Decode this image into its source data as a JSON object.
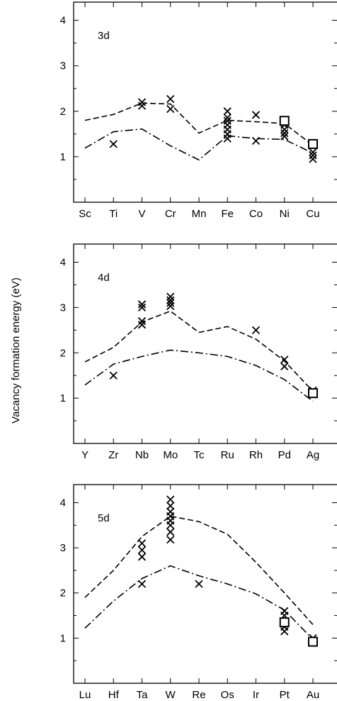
{
  "ylabel": "Vacancy formation energy (eV)",
  "colors": {
    "ink": "#000000",
    "background": "#ffffff"
  },
  "chart_data": [
    {
      "type": "scatter",
      "panel_label": "3d",
      "categories": [
        "Sc",
        "Ti",
        "V",
        "Cr",
        "Mn",
        "Fe",
        "Co",
        "Ni",
        "Cu"
      ],
      "ylim": [
        0,
        4.4
      ],
      "yticks": [
        1,
        2,
        3,
        4
      ],
      "series": [
        {
          "style": "dashed",
          "values": [
            1.8,
            1.93,
            2.18,
            2.16,
            1.52,
            1.8,
            1.77,
            1.73,
            1.25
          ]
        },
        {
          "style": "dash-dot",
          "values": [
            1.19,
            1.55,
            1.61,
            1.24,
            0.93,
            1.46,
            1.4,
            1.38,
            1.08
          ]
        },
        {
          "marker": "cross",
          "points": [
            [
              "Ti",
              1.28
            ],
            [
              "V",
              2.2
            ],
            [
              "V",
              2.12
            ],
            [
              "Cr",
              2.27
            ],
            [
              "Cr",
              2.05
            ],
            [
              "Fe",
              2.0
            ],
            [
              "Fe",
              1.86
            ],
            [
              "Fe",
              1.79
            ],
            [
              "Fe",
              1.7
            ],
            [
              "Fe",
              1.6
            ],
            [
              "Fe",
              1.5
            ],
            [
              "Fe",
              1.4
            ],
            [
              "Co",
              1.92
            ],
            [
              "Co",
              1.35
            ],
            [
              "Ni",
              1.7
            ],
            [
              "Ni",
              1.6
            ],
            [
              "Ni",
              1.52
            ],
            [
              "Ni",
              1.45
            ],
            [
              "Cu",
              1.1
            ],
            [
              "Cu",
              1.03
            ],
            [
              "Cu",
              0.95
            ]
          ]
        },
        {
          "marker": "open-square",
          "points": [
            [
              "Ni",
              1.79
            ],
            [
              "Cu",
              1.28
            ]
          ]
        }
      ]
    },
    {
      "type": "scatter",
      "panel_label": "4d",
      "categories": [
        "Y",
        "Zr",
        "Nb",
        "Mo",
        "Tc",
        "Ru",
        "Rh",
        "Pd",
        "Ag"
      ],
      "ylim": [
        0,
        4.4
      ],
      "yticks": [
        1,
        2,
        3,
        4
      ],
      "series": [
        {
          "style": "dashed",
          "values": [
            1.8,
            2.12,
            2.68,
            2.92,
            2.45,
            2.58,
            2.3,
            1.82,
            1.15
          ]
        },
        {
          "style": "dash-dot",
          "values": [
            1.29,
            1.75,
            1.92,
            2.06,
            2.0,
            1.92,
            1.72,
            1.41,
            0.93
          ]
        },
        {
          "marker": "cross",
          "points": [
            [
              "Zr",
              1.5
            ],
            [
              "Nb",
              3.07
            ],
            [
              "Nb",
              3.0
            ],
            [
              "Nb",
              2.7
            ],
            [
              "Nb",
              2.62
            ],
            [
              "Mo",
              3.24
            ],
            [
              "Mo",
              3.16
            ],
            [
              "Mo",
              3.1
            ],
            [
              "Mo",
              3.03
            ],
            [
              "Rh",
              2.5
            ],
            [
              "Pd",
              1.85
            ],
            [
              "Pd",
              1.7
            ],
            [
              "Ag",
              1.17
            ],
            [
              "Ag",
              1.11
            ]
          ]
        },
        {
          "marker": "open-square",
          "points": [
            [
              "Ag",
              1.11
            ]
          ]
        }
      ]
    },
    {
      "type": "scatter",
      "panel_label": "5d",
      "categories": [
        "Lu",
        "Hf",
        "Ta",
        "W",
        "Re",
        "Os",
        "Ir",
        "Pt",
        "Au"
      ],
      "ylim": [
        0,
        4.4
      ],
      "yticks": [
        1,
        2,
        3,
        4
      ],
      "series": [
        {
          "style": "dashed",
          "values": [
            1.9,
            2.5,
            3.25,
            3.7,
            3.58,
            3.3,
            2.68,
            2.0,
            1.3
          ]
        },
        {
          "style": "dash-dot",
          "values": [
            1.22,
            1.82,
            2.32,
            2.6,
            2.38,
            2.2,
            1.98,
            1.62,
            0.97
          ]
        },
        {
          "marker": "cross",
          "points": [
            [
              "Ta",
              3.1
            ],
            [
              "Ta",
              2.95
            ],
            [
              "Ta",
              2.8
            ],
            [
              "Ta",
              2.2
            ],
            [
              "W",
              4.07
            ],
            [
              "W",
              3.93
            ],
            [
              "W",
              3.8
            ],
            [
              "W",
              3.7
            ],
            [
              "W",
              3.6
            ],
            [
              "W",
              3.5
            ],
            [
              "W",
              3.35
            ],
            [
              "W",
              3.18
            ],
            [
              "Re",
              2.2
            ],
            [
              "Pt",
              1.6
            ],
            [
              "Pt",
              1.5
            ],
            [
              "Pt",
              1.25
            ],
            [
              "Pt",
              1.15
            ],
            [
              "Au",
              1.0
            ]
          ]
        },
        {
          "marker": "open-square",
          "points": [
            [
              "Pt",
              1.35
            ],
            [
              "Au",
              0.92
            ]
          ]
        }
      ]
    }
  ]
}
